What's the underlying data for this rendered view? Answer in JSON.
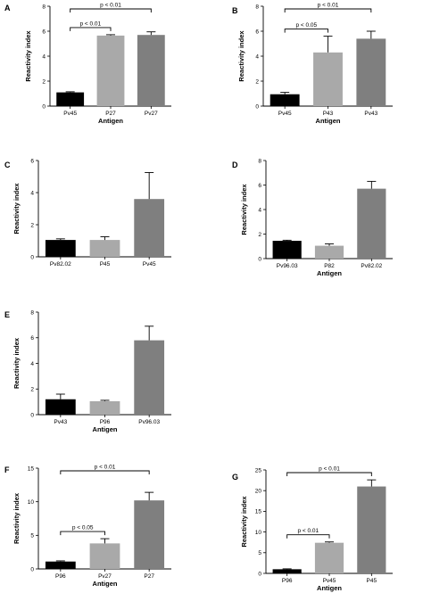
{
  "chart_data": [
    {
      "panel": "A",
      "type": "bar",
      "categories": [
        "Pv45",
        "P27",
        "Pv27"
      ],
      "values": [
        1.1,
        5.65,
        5.7
      ],
      "errors": [
        0.05,
        0.07,
        0.25
      ],
      "ylim": [
        0,
        8
      ],
      "yticks": [
        0,
        2,
        4,
        6,
        8
      ],
      "ylabel": "Reactivity index",
      "xlabel": "Antigen",
      "colors": [
        "#000000",
        "#a9a9a9",
        "#7f7f7f"
      ],
      "significance": [
        {
          "from": 0,
          "to": 1,
          "label": "p < 0.01"
        },
        {
          "from": 0,
          "to": 2,
          "label": "p < 0.01"
        }
      ]
    },
    {
      "panel": "B",
      "type": "bar",
      "categories": [
        "Pv45",
        "P43",
        "Pv43"
      ],
      "values": [
        0.95,
        4.3,
        5.4
      ],
      "errors": [
        0.15,
        1.3,
        0.6
      ],
      "ylim": [
        0,
        8
      ],
      "yticks": [
        0,
        2,
        4,
        6,
        8
      ],
      "ylabel": "Reactivity index",
      "xlabel": "Antigen",
      "colors": [
        "#000000",
        "#a9a9a9",
        "#7f7f7f"
      ],
      "significance": [
        {
          "from": 0,
          "to": 1,
          "label": "p < 0.05"
        },
        {
          "from": 0,
          "to": 2,
          "label": "p < 0.01"
        }
      ]
    },
    {
      "panel": "C",
      "type": "bar",
      "categories": [
        "Pv82.02",
        "P45",
        "Pv45"
      ],
      "values": [
        1.05,
        1.05,
        3.6
      ],
      "errors": [
        0.07,
        0.2,
        1.65
      ],
      "ylim": [
        0,
        6
      ],
      "yticks": [
        0,
        2,
        4,
        6
      ],
      "ylabel": "Reactivity index",
      "xlabel": "",
      "colors": [
        "#000000",
        "#a9a9a9",
        "#7f7f7f"
      ],
      "significance": []
    },
    {
      "panel": "D",
      "type": "bar",
      "categories": [
        "Pv96.03",
        "P82",
        "Pv82.02"
      ],
      "values": [
        1.45,
        1.05,
        5.7
      ],
      "errors": [
        0.05,
        0.15,
        0.6
      ],
      "ylim": [
        0,
        8
      ],
      "yticks": [
        0,
        2,
        4,
        6,
        8
      ],
      "ylabel": "Reactivity index",
      "xlabel": "Antigen",
      "colors": [
        "#000000",
        "#a9a9a9",
        "#7f7f7f"
      ],
      "significance": []
    },
    {
      "panel": "E",
      "type": "bar",
      "categories": [
        "Pv43",
        "P96",
        "Pv96.03"
      ],
      "values": [
        1.2,
        1.05,
        5.8
      ],
      "errors": [
        0.4,
        0.07,
        1.1
      ],
      "ylim": [
        0,
        8
      ],
      "yticks": [
        0,
        2,
        4,
        6,
        8
      ],
      "ylabel": "Reactivity index",
      "xlabel": "Antigen",
      "colors": [
        "#000000",
        "#a9a9a9",
        "#7f7f7f"
      ],
      "significance": []
    },
    {
      "panel": "F",
      "type": "bar",
      "categories": [
        "P96",
        "Pv27",
        "P27"
      ],
      "values": [
        1.1,
        3.8,
        10.2
      ],
      "errors": [
        0.1,
        0.7,
        1.2
      ],
      "ylim": [
        0,
        15
      ],
      "yticks": [
        0,
        5,
        10,
        15
      ],
      "ylabel": "Reactivity index",
      "xlabel": "Antigen",
      "colors": [
        "#000000",
        "#a9a9a9",
        "#7f7f7f"
      ],
      "significance": [
        {
          "from": 0,
          "to": 1,
          "label": "p < 0.05"
        },
        {
          "from": 0,
          "to": 2,
          "label": "p < 0.01"
        }
      ]
    },
    {
      "panel": "G",
      "type": "bar",
      "categories": [
        "P96",
        "Pv45",
        "P45"
      ],
      "values": [
        1.0,
        7.4,
        21.0
      ],
      "errors": [
        0.1,
        0.2,
        1.6
      ],
      "ylim": [
        0,
        25
      ],
      "yticks": [
        0,
        5,
        10,
        15,
        20,
        25
      ],
      "ylabel": "Reactivity index",
      "xlabel": "Antigen",
      "colors": [
        "#000000",
        "#a9a9a9",
        "#7f7f7f"
      ],
      "significance": [
        {
          "from": 0,
          "to": 1,
          "label": "p < 0.01"
        },
        {
          "from": 0,
          "to": 2,
          "label": "p < 0.01"
        }
      ]
    }
  ]
}
